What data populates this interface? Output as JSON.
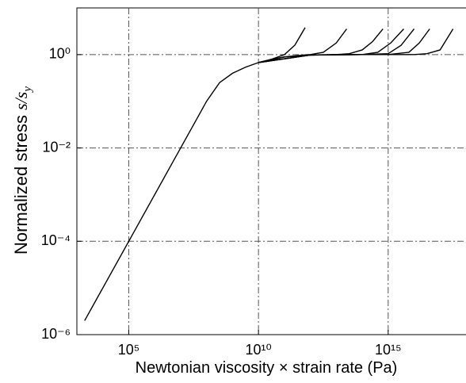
{
  "chart_data": {
    "type": "line",
    "xlabel": "Newtonian viscosity × strain rate (Pa)",
    "ylabel": {
      "text": "Normalized stress ",
      "var": "s/s",
      "sub": "y"
    },
    "xscale": "log",
    "yscale": "log",
    "grid": true,
    "color": "#000000",
    "xlim": [
      1000,
      1e+18
    ],
    "ylim": [
      1e-06,
      10
    ],
    "xticks": [
      {
        "value": 100000,
        "label": "10⁵"
      },
      {
        "value": 10000000000.0,
        "label": "10¹⁰"
      },
      {
        "value": 1000000000000000.0,
        "label": "10¹⁵"
      }
    ],
    "yticks": [
      {
        "value": 1e-06,
        "label": "10⁻⁶"
      },
      {
        "value": 0.0001,
        "label": "10⁻⁴"
      },
      {
        "value": 0.01,
        "label": "10⁻²"
      },
      {
        "value": 1,
        "label": "10⁰"
      }
    ],
    "series": [
      {
        "x": [
          1995,
          100000,
          10000000,
          31622777,
          100000000,
          316227766,
          1000000000,
          3162277660,
          10000000000.0,
          31622776602,
          100000000000.0,
          251200000000.0,
          631000000000.0
        ],
        "values": [
          2e-06,
          0.0001,
          0.01,
          0.0316,
          0.1,
          0.251,
          0.398,
          0.537,
          0.676,
          0.794,
          1,
          1.585,
          3.802
        ]
      },
      {
        "x": [
          10000000000.0,
          31622776602,
          100000000000.0,
          316200000000.0,
          1000000000000.0,
          3162000000000.0,
          10000000000000.0,
          25120000000000.0
        ],
        "values": [
          0.676,
          0.794,
          0.891,
          0.955,
          1,
          1.122,
          1.778,
          3.548
        ]
      },
      {
        "x": [
          10000000000.0,
          100000000000.0,
          1000000000000.0,
          10000000000000.0,
          31620000000000.0,
          100000000000000.0,
          251200000000000.0,
          631000000000000.0
        ],
        "values": [
          0.676,
          0.891,
          0.977,
          1,
          1.047,
          1.259,
          1.905,
          3.548
        ]
      },
      {
        "x": [
          10000000000.0,
          100000000000.0,
          1000000000000.0,
          10000000000000.0,
          100000000000000.0,
          398100000000000.0,
          1259000000000000.0,
          3981000000000000.0
        ],
        "values": [
          0.676,
          0.891,
          0.977,
          1,
          1,
          1.122,
          1.778,
          3.548
        ]
      },
      {
        "x": [
          10000000000.0,
          1000000000000.0,
          100000000000000.0,
          1000000000000000.0,
          3162000000000000.0,
          1e+16
        ],
        "values": [
          0.676,
          0.977,
          1,
          1.047,
          1.585,
          3.548
        ]
      },
      {
        "x": [
          10000000000.0,
          1000000000000.0,
          100000000000000.0,
          1000000000000000.0,
          6310000000000000.0,
          1.585e+16,
          3.981e+16
        ],
        "values": [
          0.676,
          0.977,
          1,
          1,
          1.122,
          1.778,
          3.548
        ]
      },
      {
        "x": [
          10000000000.0,
          1000000000000.0,
          100000000000000.0,
          1e+16,
          3.162e+16,
          1e+17,
          3.162e+17
        ],
        "values": [
          0.676,
          0.977,
          1,
          1,
          1.047,
          1.259,
          3.548
        ]
      }
    ]
  }
}
